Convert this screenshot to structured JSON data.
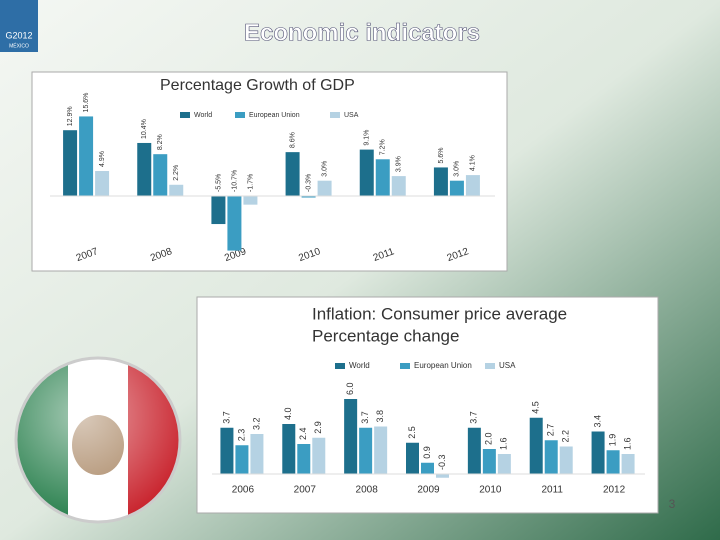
{
  "slide": {
    "title": "Economic indicators",
    "page_number": "3",
    "logo": "G2012",
    "logo_sub": "MÉXICO"
  },
  "chart_data": [
    {
      "type": "bar",
      "title": "Percentage Growth of GDP",
      "categories": [
        "2007",
        "2008",
        "2009",
        "2010",
        "2011",
        "2012"
      ],
      "series": [
        {
          "name": "World",
          "color": "#1d6f8c",
          "values": [
            12.9,
            10.4,
            -5.5,
            8.6,
            9.1,
            5.6
          ],
          "value_labels": [
            "12.9%",
            "10.4%",
            "-5.5%",
            "8.6%",
            "9.1%",
            "5.6%"
          ]
        },
        {
          "name": "European Union",
          "color": "#3b9dc2",
          "values": [
            15.6,
            8.2,
            -10.7,
            -0.3,
            7.2,
            3.0
          ],
          "value_labels": [
            "15.6%",
            "8.2%",
            "-10.7%",
            "-0.3%",
            "7.2%",
            "3.0%"
          ]
        },
        {
          "name": "USA",
          "color": "#b5d2e3",
          "values": [
            4.9,
            2.2,
            -1.7,
            3.0,
            3.9,
            4.1
          ],
          "value_labels": [
            "4.9%",
            "2.2%",
            "-1.7%",
            "3.0%",
            "3.9%",
            "4.1%"
          ]
        }
      ]
    },
    {
      "type": "bar",
      "title": "Inflation: Consumer price average",
      "subtitle": "Percentage change",
      "categories": [
        "2006",
        "2007",
        "2008",
        "2009",
        "2010",
        "2011",
        "2012"
      ],
      "series": [
        {
          "name": "World",
          "color": "#1d6f8c",
          "values": [
            3.7,
            4.0,
            6.0,
            2.5,
            3.7,
            4.5,
            3.4
          ],
          "value_labels": [
            "3.7",
            "4.0",
            "6.0",
            "2.5",
            "3.7",
            "4.5",
            "3.4"
          ]
        },
        {
          "name": "European Union",
          "color": "#3b9dc2",
          "values": [
            2.3,
            2.4,
            3.7,
            0.9,
            2.0,
            2.7,
            1.9
          ],
          "value_labels": [
            "2.3",
            "2.4",
            "3.7",
            "0.9",
            "2.0",
            "2.7",
            "1.9"
          ]
        },
        {
          "name": "USA",
          "color": "#b5d2e3",
          "values": [
            3.2,
            2.9,
            3.8,
            -0.3,
            1.6,
            2.2,
            1.6
          ],
          "value_labels": [
            "3.2",
            "2.9",
            "3.8",
            "-0.3",
            "1.6",
            "2.2",
            "1.6"
          ]
        }
      ]
    }
  ]
}
